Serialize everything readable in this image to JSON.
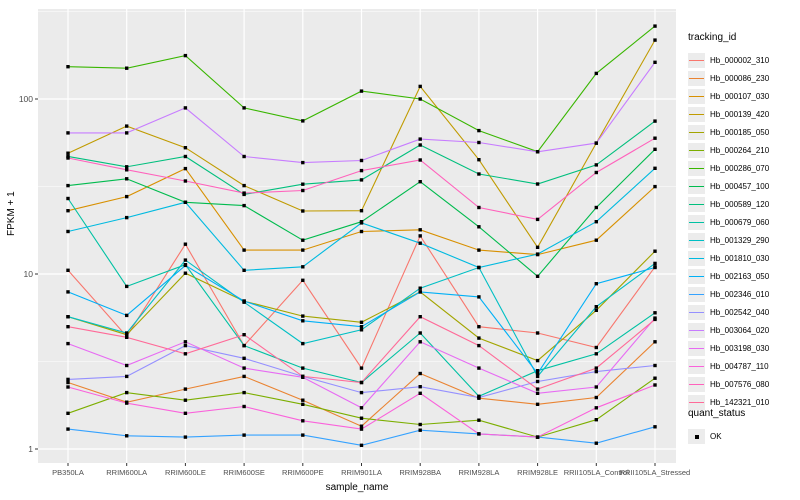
{
  "figure": {
    "y_axis_title": "FPKM + 1",
    "x_axis_title": "sample_name",
    "legend_tracking": {
      "title": "tracking_id"
    },
    "legend_quant": {
      "title": "quant_status",
      "items": [
        {
          "label": "OK",
          "marker": "black-square"
        }
      ]
    },
    "panel_bg": "#EBEBEB",
    "grid_color": "#FFFFFF",
    "tick_label_color": "#4D4D4D"
  },
  "chart_data": {
    "type": "line",
    "title": "",
    "xlabel": "sample_name",
    "ylabel": "FPKM + 1",
    "y_scale": "log10",
    "ylim": [
      0.85,
      330
    ],
    "y_major_ticks": [
      1,
      10,
      100
    ],
    "y_minor_ticks": [
      3.162,
      31.62,
      316.2
    ],
    "grid": true,
    "legend_position": "right",
    "point_marker": "black-square",
    "categories": [
      "PB350LA",
      "RRIM600LA",
      "RRIM600LE",
      "RRIM600SE",
      "RRIM600PE",
      "RRIM901LA",
      "RRIM928BA",
      "RRIM928LA",
      "RRIM928LE",
      "RRII105LA_Control",
      "RRII105LA_Stressed"
    ],
    "series": [
      {
        "name": "Hb_000002_310",
        "color": "#F8766D",
        "values": [
          10.5,
          4.4,
          14.8,
          3.9,
          9.2,
          2.9,
          16.5,
          5.0,
          4.6,
          3.8,
          11.0
        ]
      },
      {
        "name": "Hb_000086_230",
        "color": "#EA8331",
        "values": [
          2.4,
          1.85,
          2.2,
          2.6,
          1.9,
          1.35,
          2.7,
          1.95,
          1.8,
          1.97,
          4.1
        ]
      },
      {
        "name": "Hb_000107_030",
        "color": "#D89000",
        "values": [
          23,
          27.7,
          40,
          13.7,
          13.7,
          17.5,
          17.9,
          13.7,
          12.9,
          15.6,
          31.6
        ]
      },
      {
        "name": "Hb_000139_420",
        "color": "#C09B00",
        "values": [
          49,
          70,
          52.7,
          32,
          22.9,
          23,
          118,
          45,
          14.2,
          56,
          217
        ]
      },
      {
        "name": "Hb_000185_050",
        "color": "#A3A500",
        "values": [
          5.7,
          4.5,
          10.1,
          7.0,
          5.75,
          5.3,
          7.9,
          4.3,
          3.2,
          6.2,
          13.5
        ]
      },
      {
        "name": "Hb_000264_210",
        "color": "#7CAE00",
        "values": [
          1.6,
          2.1,
          1.9,
          2.1,
          1.8,
          1.5,
          1.38,
          1.46,
          1.17,
          1.47,
          2.54
        ]
      },
      {
        "name": "Hb_000286_070",
        "color": "#39B600",
        "values": [
          153,
          150,
          177,
          89,
          75,
          111,
          100,
          66,
          50,
          140,
          261
        ]
      },
      {
        "name": "Hb_000457_100",
        "color": "#00BB4E",
        "values": [
          32,
          35,
          25.7,
          24.6,
          15.6,
          19.9,
          33.7,
          18.6,
          9.7,
          24,
          51.6
        ]
      },
      {
        "name": "Hb_000589_120",
        "color": "#00BF7D",
        "values": [
          47,
          41,
          46.9,
          28.5,
          32.6,
          34.5,
          54.6,
          37.3,
          32.7,
          42,
          74.8
        ]
      },
      {
        "name": "Hb_000679_060",
        "color": "#00C1A3",
        "values": [
          27,
          8.5,
          11.3,
          3.9,
          2.9,
          2.4,
          4.6,
          2.0,
          2.8,
          3.5,
          6.0
        ]
      },
      {
        "name": "Hb_001329_290",
        "color": "#00BFC4",
        "values": [
          5.7,
          4.6,
          12.0,
          6.9,
          4.0,
          4.8,
          8.3,
          10.9,
          2.6,
          6.5,
          11.5
        ]
      },
      {
        "name": "Hb_001810_030",
        "color": "#00BAE0",
        "values": [
          17.5,
          21.0,
          25.7,
          10.5,
          11.0,
          19.6,
          15.0,
          10.9,
          13.0,
          19.9,
          40.2
        ]
      },
      {
        "name": "Hb_002163_050",
        "color": "#00B0F6",
        "values": [
          7.9,
          5.8,
          11.2,
          7.0,
          5.4,
          5.0,
          7.9,
          7.4,
          2.7,
          8.8,
          10.9
        ]
      },
      {
        "name": "Hb_002346_010",
        "color": "#35A2FF",
        "values": [
          1.3,
          1.19,
          1.17,
          1.2,
          1.2,
          1.05,
          1.28,
          1.22,
          1.17,
          1.08,
          1.34
        ]
      },
      {
        "name": "Hb_002542_040",
        "color": "#9590FF",
        "values": [
          2.5,
          2.6,
          3.9,
          3.3,
          2.6,
          2.1,
          2.27,
          1.97,
          2.43,
          2.77,
          3.0
        ]
      },
      {
        "name": "Hb_003064_020",
        "color": "#C77CFF",
        "values": [
          64,
          64,
          89,
          46.9,
          43.3,
          44.5,
          59,
          56.4,
          49.9,
          56,
          162
        ]
      },
      {
        "name": "Hb_003198_030",
        "color": "#E76BF3",
        "values": [
          4.0,
          3.0,
          4.1,
          2.9,
          2.57,
          1.72,
          4.1,
          2.9,
          2.08,
          2.26,
          5.6
        ]
      },
      {
        "name": "Hb_004787_110",
        "color": "#FA62DB",
        "values": [
          2.26,
          1.83,
          1.6,
          1.75,
          1.45,
          1.3,
          2.08,
          1.22,
          1.17,
          1.72,
          2.32
        ]
      },
      {
        "name": "Hb_007576_080",
        "color": "#FF62BC",
        "values": [
          46,
          39.4,
          34,
          29,
          30,
          39,
          44.8,
          24,
          20.5,
          38,
          59.7
        ]
      },
      {
        "name": "Hb_142321_010",
        "color": "#FF6A98",
        "values": [
          5.0,
          4.35,
          3.5,
          4.5,
          2.6,
          2.4,
          5.7,
          3.9,
          2.2,
          2.9,
          5.5
        ]
      }
    ]
  }
}
